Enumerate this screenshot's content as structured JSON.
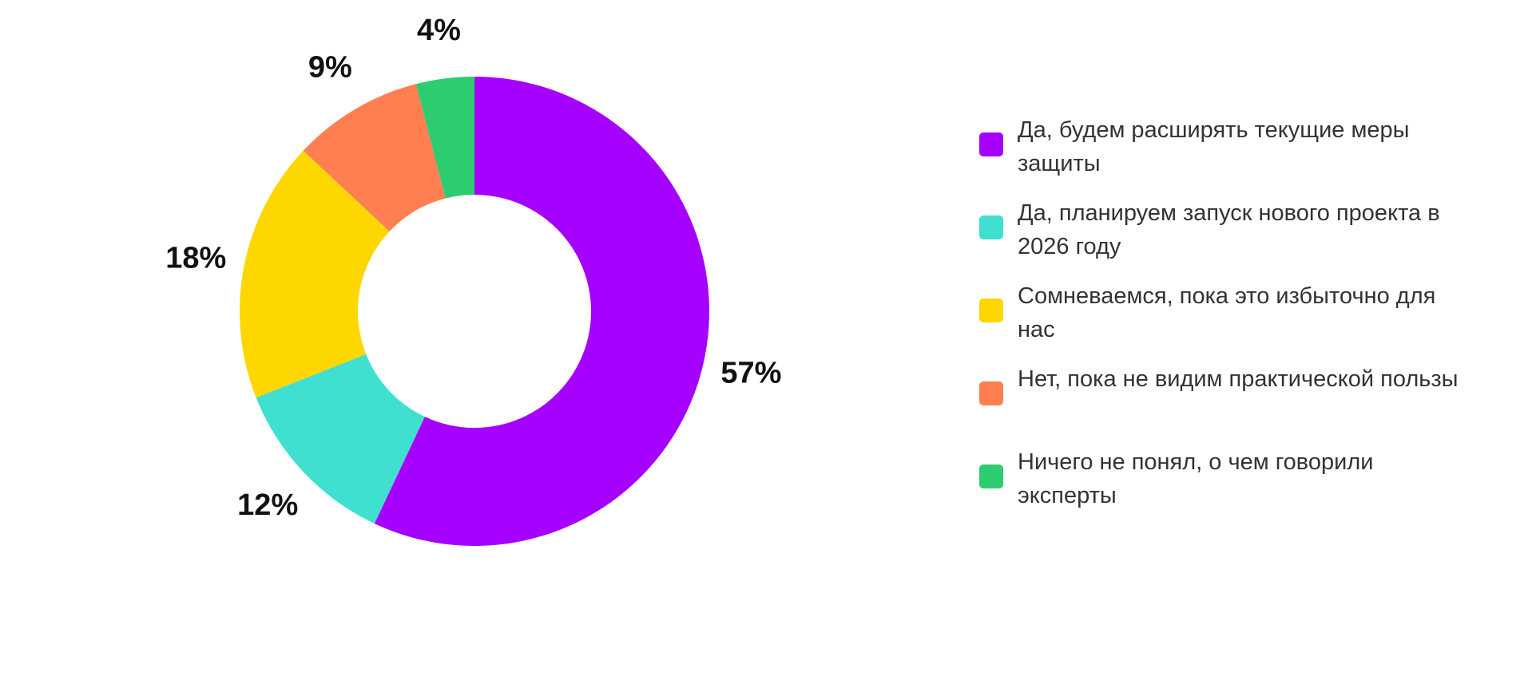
{
  "chart_data": {
    "type": "pie",
    "style": "donut",
    "legend_position": "right",
    "categories": [
      "Да, будем расширять текущие меры защиты",
      "Да, планируем запуск нового проекта в 2026 году",
      "Сомневаемся, пока это избыточно для нас",
      "Нет, пока не видим практической пользы",
      "Ничего не понял, о чем говорили эксперты"
    ],
    "values": [
      57,
      12,
      18,
      9,
      4
    ],
    "value_labels": [
      "57%",
      "12%",
      "18%",
      "9%",
      "4%"
    ],
    "colors": [
      "#a600ff",
      "#40e0d0",
      "#ffd700",
      "#ff7f50",
      "#2ecc71"
    ]
  }
}
